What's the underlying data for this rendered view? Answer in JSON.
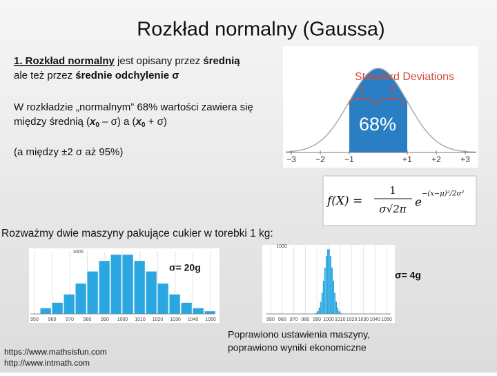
{
  "title": "Rozkład normalny (Gaussa)",
  "paragraph1": {
    "line1": [
      "1. Rozkład normalny",
      " jest opisany przez ",
      "średnią"
    ],
    "line2": [
      "ale też przez ",
      "średnie odchylenie σ"
    ]
  },
  "paragraph2": {
    "line1": "W rozkładzie „normalnym” 68% wartości zawiera się",
    "line2": [
      "między średnią (",
      "x",
      "0",
      " – σ) a (",
      "x",
      "0",
      "  + σ)"
    ]
  },
  "paragraph3": "(a między ±2 σ aż 95%)",
  "figure": {
    "title": "Standard Deviations",
    "brace_labels": [
      "1",
      "1"
    ],
    "percent": "68%",
    "axis_labels": [
      "−3",
      "−2",
      "−1",
      "+1",
      "+2",
      "+3"
    ]
  },
  "formula": {
    "lhs": "f(X) =",
    "numerator": "1",
    "denominator": "σ√2π",
    "base": "e",
    "exponent": "−(x−μ)²/2σ²"
  },
  "intro": "Rozważmy dwie maszyny pakujące cukier w torebki 1 kg:",
  "histograms": [
    {
      "top_label": "1000",
      "axis_labels": [
        "950",
        "960",
        "970",
        "980",
        "990",
        "1000",
        "1010",
        "1020",
        "1030",
        "1040",
        "1050"
      ],
      "caption": "σ= 20g"
    },
    {
      "top_label": "1000",
      "axis_labels": [
        "950",
        "960",
        "970",
        "980",
        "990",
        "1000",
        "1010",
        "1020",
        "1030",
        "1040",
        "1050"
      ],
      "caption": "σ= 4g"
    }
  ],
  "sources": [
    "https://www.mathsisfun.com",
    "http://www.intmath.com"
  ],
  "note": [
    "Poprawiono ustawienia maszyny,",
    "poprawiono wyniki ekonomiczne"
  ]
}
